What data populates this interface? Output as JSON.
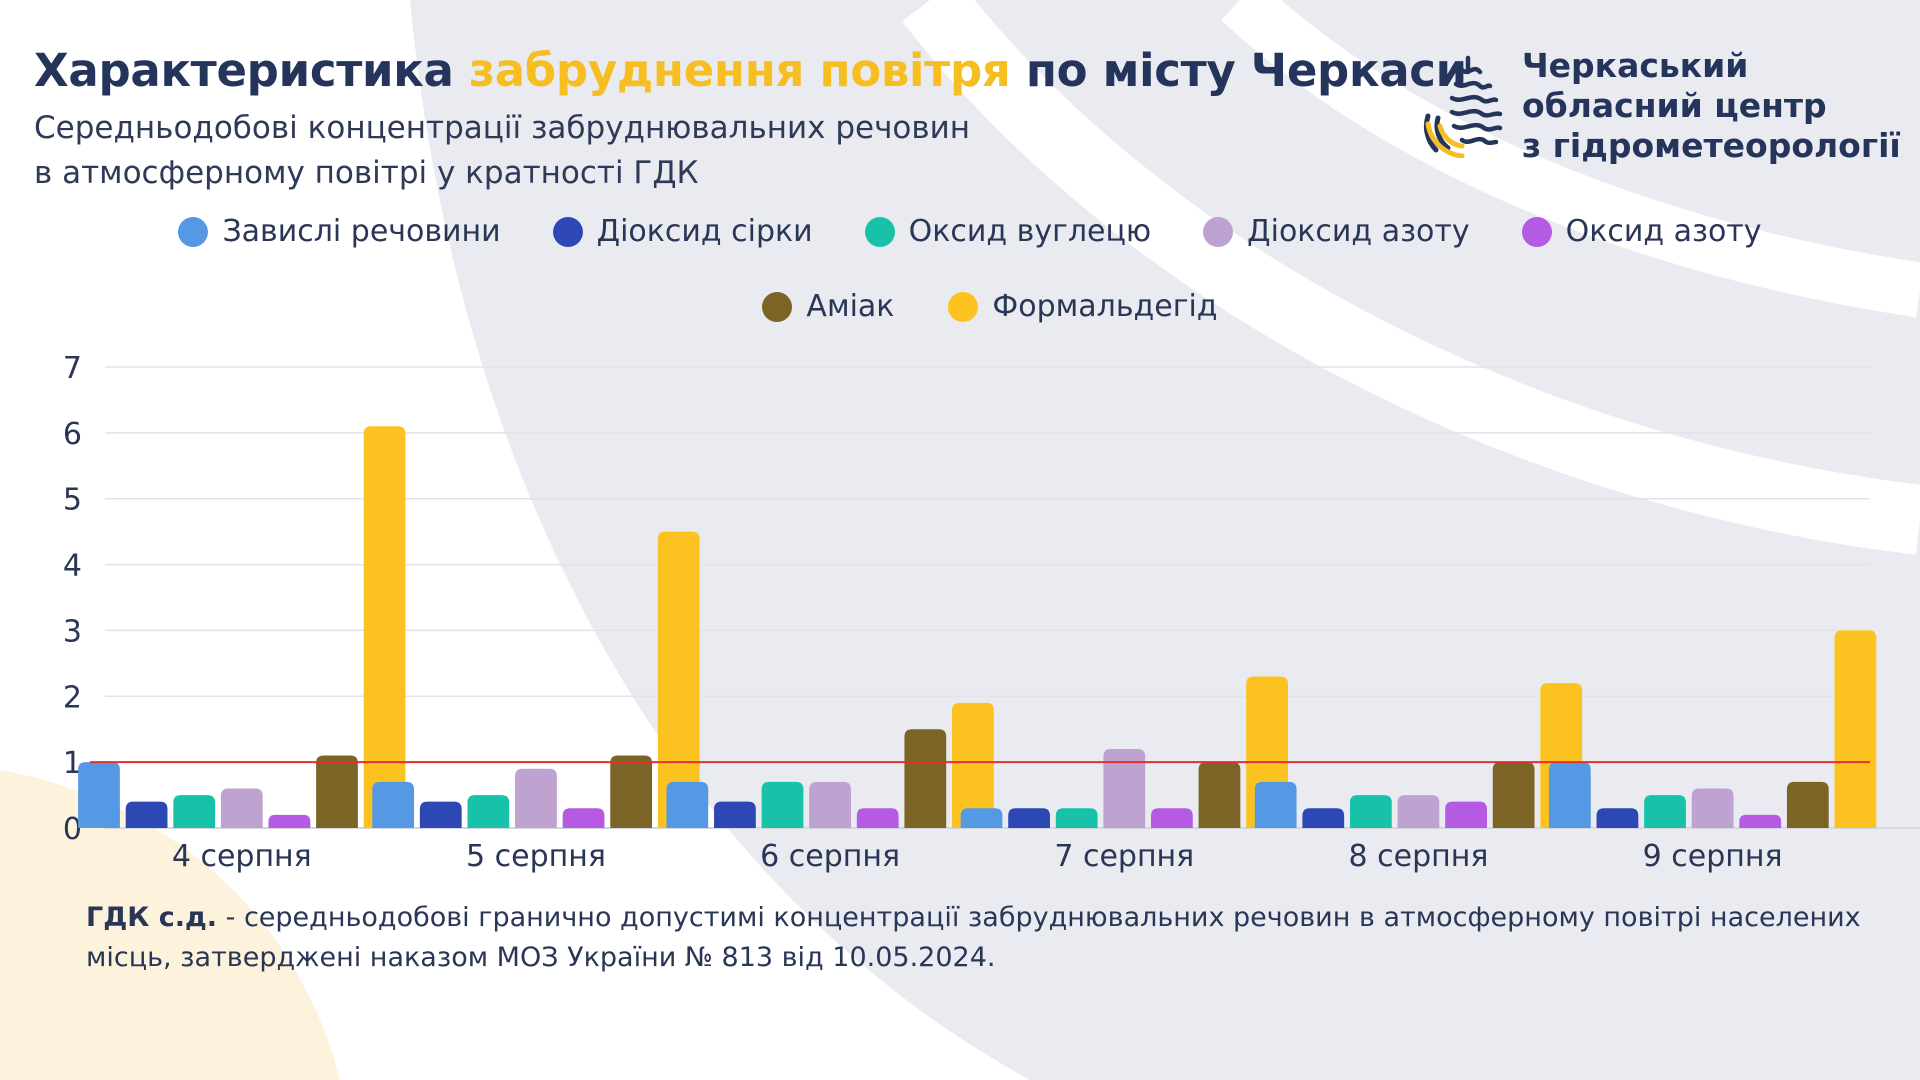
{
  "title": {
    "part1": "Характеристика ",
    "accent": "забруднення повітря",
    "part2": " по місту Черкаси"
  },
  "subtitle": {
    "line1": "Середньодобові концентрації забруднювальних речовин",
    "line2": "в атмосферному повітрі у кратності ГДК"
  },
  "organization": {
    "line1": "Черкаський",
    "line2": "обласний центр",
    "line3": "з гідрометеорології",
    "logo_icon": "water-drop-logo-icon"
  },
  "footnote": {
    "term": "ГДК с.д.",
    "text": " - середньодобові гранично допустимі концентрації забруднювальних речовин в атмосферному повітрі населених місць, затверджені наказом МОЗ України № 813 від 10.05.2024."
  },
  "colors": {
    "title_accent": "#f6be21",
    "limit_line": "#e03131",
    "background_arc": "#e9ebf0",
    "corner_arc": "#fdf3dc"
  },
  "chart_data": {
    "type": "bar",
    "title": "",
    "xlabel": "",
    "ylabel": "",
    "ylim": [
      0,
      7
    ],
    "yticks": [
      0,
      1,
      2,
      3,
      4,
      5,
      6,
      7
    ],
    "grid": true,
    "legend_position": "top",
    "reference_line": {
      "value": 1,
      "color": "#e03131"
    },
    "categories": [
      "4 серпня",
      "5 серпня",
      "6 серпня",
      "7 серпня",
      "8 серпня",
      "9 серпня"
    ],
    "series": [
      {
        "name": "Завислі речовини",
        "color": "#5599e4",
        "values": [
          1.0,
          0.7,
          0.7,
          0.3,
          0.7,
          1.0
        ]
      },
      {
        "name": "Діоксид сірки",
        "color": "#2d47b5",
        "values": [
          0.4,
          0.4,
          0.4,
          0.3,
          0.3,
          0.3
        ]
      },
      {
        "name": "Оксид вуглецю",
        "color": "#17c2a8",
        "values": [
          0.5,
          0.5,
          0.7,
          0.3,
          0.5,
          0.5
        ]
      },
      {
        "name": "Діоксид азоту",
        "color": "#bea3d1",
        "values": [
          0.6,
          0.9,
          0.7,
          1.2,
          0.5,
          0.6
        ]
      },
      {
        "name": "Оксид азоту",
        "color": "#b55ae2",
        "values": [
          0.2,
          0.3,
          0.3,
          0.3,
          0.4,
          0.2
        ]
      },
      {
        "name": "Аміак",
        "color": "#7b6426",
        "values": [
          1.1,
          1.1,
          1.5,
          1.0,
          1.0,
          0.7
        ]
      },
      {
        "name": "Формальдегід",
        "color": "#fcc320",
        "values": [
          6.1,
          4.5,
          1.9,
          2.3,
          2.2,
          3.0
        ]
      }
    ]
  }
}
